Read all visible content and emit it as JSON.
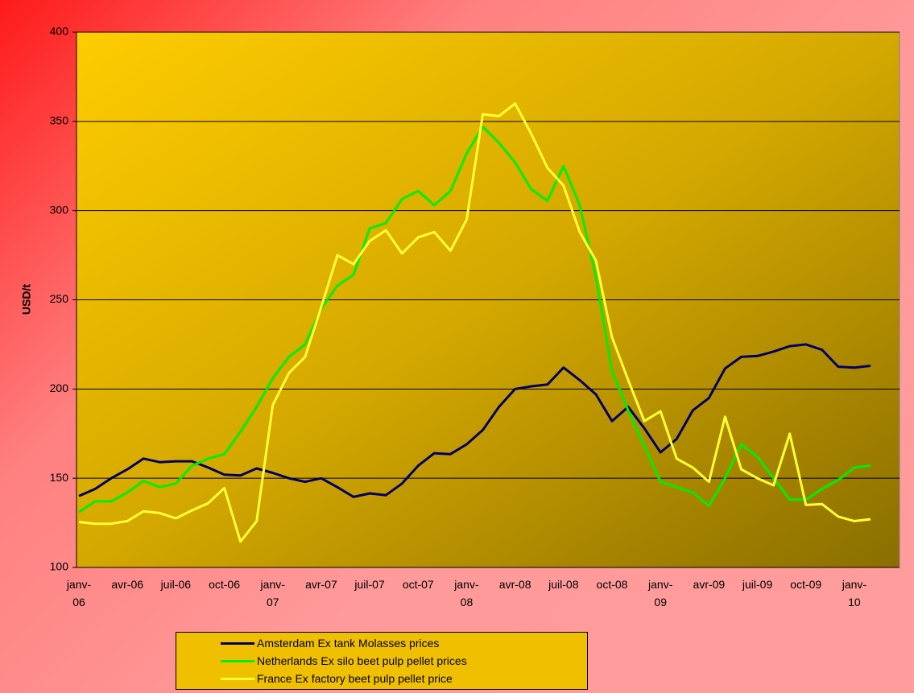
{
  "chart_data": {
    "type": "line",
    "y_label": "USD/t",
    "categories": [
      "janv-06",
      null,
      null,
      "avr-06",
      null,
      null,
      "juil-06",
      null,
      null,
      "oct-06",
      null,
      null,
      "janv-07",
      null,
      null,
      "avr-07",
      null,
      null,
      "juil-07",
      null,
      null,
      "oct-07",
      null,
      null,
      "janv-08",
      null,
      null,
      "avr-08",
      null,
      null,
      "juil-08",
      null,
      null,
      "oct-08",
      null,
      null,
      "janv-09",
      null,
      null,
      "avr-09",
      null,
      null,
      "juil-09",
      null,
      null,
      "oct-09",
      null,
      null,
      "janv-10",
      null
    ],
    "ylim": [
      100,
      400
    ],
    "yticks": [
      100,
      150,
      200,
      250,
      300,
      350,
      400
    ],
    "grid": true,
    "series": [
      {
        "name": "Amsterdam Ex tank Molasses prices",
        "color": "#000066",
        "values": [
          140,
          144,
          150,
          155,
          161,
          159,
          159.5,
          159.5,
          156,
          152,
          151.5,
          155.5,
          153,
          150,
          148,
          150,
          145,
          139.5,
          141.5,
          140.5,
          147,
          157,
          164,
          163.5,
          169,
          177,
          190,
          200,
          201.5,
          202.5,
          212,
          205,
          197,
          182,
          190,
          178,
          164.5,
          172,
          188,
          195,
          211.5,
          218,
          218.5,
          221,
          224,
          225,
          222,
          212.5,
          212,
          213
        ]
      },
      {
        "name": "Netherlands Ex silo beet pulp pellet  prices",
        "color": "#00ee00",
        "values": [
          131,
          137,
          137,
          142,
          148.5,
          145,
          147,
          157,
          161,
          163.5,
          176,
          190,
          206,
          218,
          225,
          245,
          258,
          264,
          290,
          293,
          306.5,
          311,
          303,
          311,
          332,
          347,
          338,
          327,
          312,
          305.5,
          325,
          303,
          263,
          210,
          188,
          168,
          148,
          145,
          142,
          134.5,
          150,
          169,
          162,
          150,
          138,
          138,
          144,
          149,
          156,
          157
        ]
      },
      {
        "name": "France Ex factory beet pulp pellet price",
        "color": "#ffff33",
        "values": [
          125.5,
          124.5,
          124.5,
          126,
          131.5,
          130.5,
          127.5,
          132,
          136,
          144.5,
          114.5,
          126,
          191,
          209,
          218,
          246,
          275,
          270,
          283,
          289,
          276,
          285,
          288,
          277.5,
          295,
          354,
          353,
          360,
          343,
          324,
          314,
          288,
          272,
          229,
          205,
          182,
          187.5,
          161,
          156,
          148,
          184.5,
          155,
          150,
          146,
          175,
          135,
          135.5,
          128.5,
          126,
          127
        ]
      }
    ]
  }
}
